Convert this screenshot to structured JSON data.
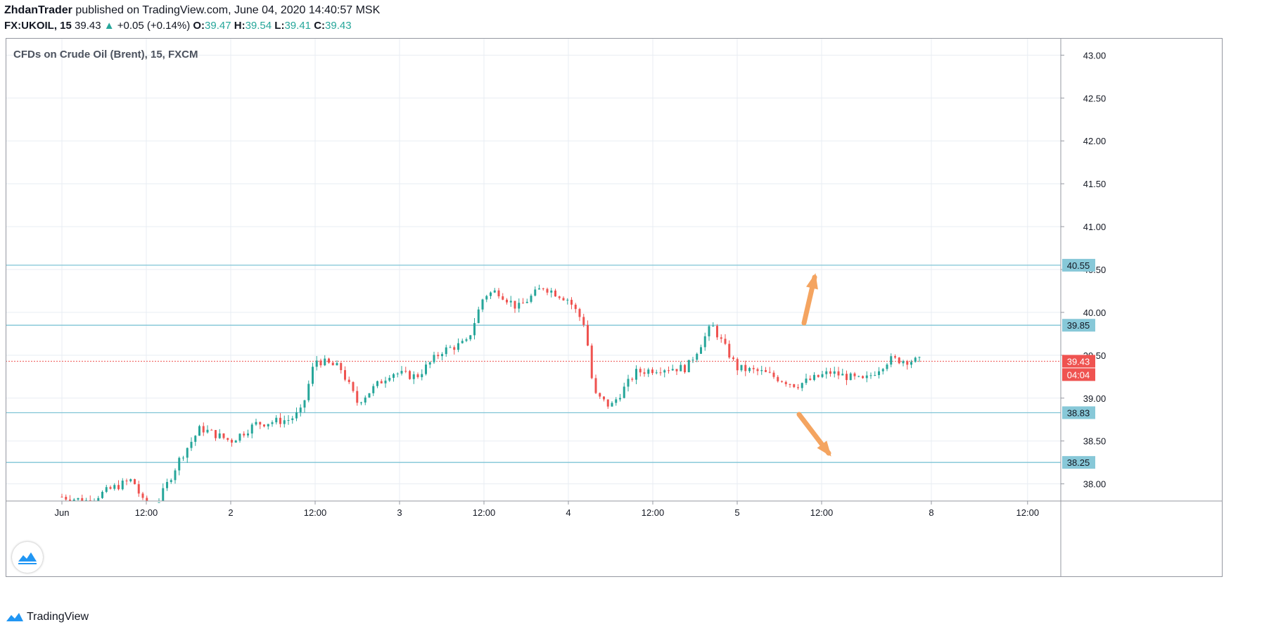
{
  "header": {
    "author": "ZhdanTrader",
    "published_text": "published on TradingView.com, June 04, 2020 14:40:57 MSK",
    "symbol": "FX:UKOIL, 15",
    "last": "39.43",
    "change": "+0.05 (+0.14%)",
    "o_label": "O:",
    "o_value": "39.47",
    "h_label": "H:",
    "h_value": "39.54",
    "l_label": "L:",
    "l_value": "39.41",
    "c_label": "C:",
    "c_value": "39.43"
  },
  "series_title": "CFDs on Crude Oil (Brent), 15, FXCM",
  "footer": {
    "brand": "TradingView"
  },
  "colors": {
    "up": "#26a69a",
    "down": "#ef5350",
    "grid": "#e8edf3",
    "level": "#7fc4d6",
    "level_badge": "#87c8d8",
    "price": "#ef5350",
    "arrow": "#f4a460"
  },
  "icons": {
    "brand": "tradingview-logo-icon",
    "up_arrow": "triangle-up-icon"
  },
  "chart_data": {
    "type": "candlestick",
    "title": "CFDs on Crude Oil (Brent), 15, FXCM",
    "ylim": [
      37.8,
      43.2
    ],
    "y_ticks": [
      "43.00",
      "42.50",
      "42.00",
      "41.50",
      "41.00",
      "40.50",
      "40.00",
      "39.50",
      "39.00",
      "38.50",
      "38.00"
    ],
    "x_tick_labels": [
      "Jun",
      "12:00",
      "2",
      "12:00",
      "3",
      "12:00",
      "4",
      "12:00",
      "5",
      "12:00",
      "8",
      "12:00"
    ],
    "horizontal_levels": [
      {
        "value": 40.55,
        "label": "40.55"
      },
      {
        "value": 39.85,
        "label": "39.85"
      },
      {
        "value": 38.83,
        "label": "38.83"
      },
      {
        "value": 38.25,
        "label": "38.25"
      }
    ],
    "last_price": {
      "value": 39.43,
      "label": "39.43",
      "countdown": "04:04"
    },
    "price_path": [
      {
        "t": 0.0,
        "p": 37.85
      },
      {
        "t": 0.15,
        "p": 37.8
      },
      {
        "t": 0.3,
        "p": 37.95
      },
      {
        "t": 0.42,
        "p": 38.05
      },
      {
        "t": 0.5,
        "p": 37.7
      },
      {
        "t": 0.56,
        "p": 37.75
      },
      {
        "t": 0.7,
        "p": 38.3
      },
      {
        "t": 0.82,
        "p": 38.65
      },
      {
        "t": 1.0,
        "p": 38.5
      },
      {
        "t": 1.15,
        "p": 38.7
      },
      {
        "t": 1.35,
        "p": 38.75
      },
      {
        "t": 1.42,
        "p": 38.85
      },
      {
        "t": 1.5,
        "p": 39.45
      },
      {
        "t": 1.65,
        "p": 39.35
      },
      {
        "t": 1.75,
        "p": 38.95
      },
      {
        "t": 1.95,
        "p": 39.3
      },
      {
        "t": 2.1,
        "p": 39.25
      },
      {
        "t": 2.25,
        "p": 39.55
      },
      {
        "t": 2.4,
        "p": 39.65
      },
      {
        "t": 2.5,
        "p": 40.2
      },
      {
        "t": 2.58,
        "p": 40.25
      },
      {
        "t": 2.7,
        "p": 40.05
      },
      {
        "t": 2.85,
        "p": 40.3
      },
      {
        "t": 3.0,
        "p": 40.15
      },
      {
        "t": 3.1,
        "p": 39.85
      },
      {
        "t": 3.15,
        "p": 39.05
      },
      {
        "t": 3.25,
        "p": 38.9
      },
      {
        "t": 3.4,
        "p": 39.3
      },
      {
        "t": 3.55,
        "p": 39.35
      },
      {
        "t": 3.7,
        "p": 39.35
      },
      {
        "t": 3.85,
        "p": 39.85
      },
      {
        "t": 4.0,
        "p": 39.35
      },
      {
        "t": 4.15,
        "p": 39.3
      },
      {
        "t": 4.35,
        "p": 39.15
      },
      {
        "t": 4.55,
        "p": 39.3
      },
      {
        "t": 4.75,
        "p": 39.2
      },
      {
        "t": 4.9,
        "p": 39.45
      },
      {
        "t": 5.1,
        "p": 39.43
      }
    ]
  }
}
